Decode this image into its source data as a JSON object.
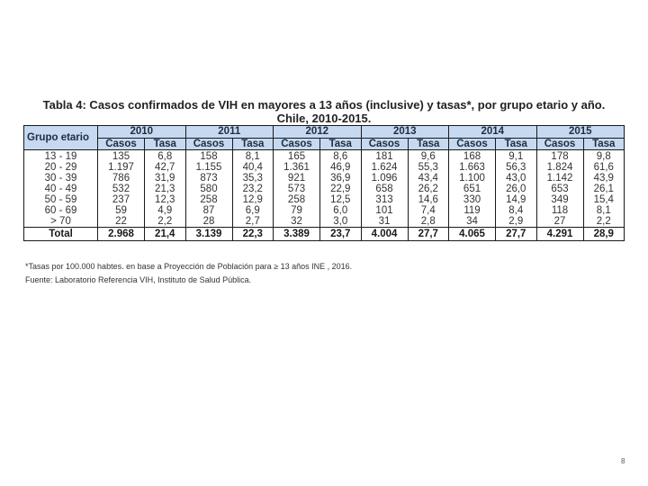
{
  "title": {
    "line1": "Tabla 4: Casos confirmados de VIH en mayores a 13 años (inclusive) y tasas*, por grupo etario y año.",
    "line2": "Chile, 2010-2015."
  },
  "table": {
    "group_header": "Grupo etario",
    "years": [
      "2010",
      "2011",
      "2012",
      "2013",
      "2014",
      "2015"
    ],
    "sub_headers": [
      "Casos",
      "Tasa"
    ],
    "rows": [
      {
        "group": "13 - 19",
        "values": [
          "135",
          "6,8",
          "158",
          "8,1",
          "165",
          "8,6",
          "181",
          "9,6",
          "168",
          "9,1",
          "178",
          "9,8"
        ]
      },
      {
        "group": "20 - 29",
        "values": [
          "1.197",
          "42,7",
          "1.155",
          "40,4",
          "1.361",
          "46,9",
          "1.624",
          "55,3",
          "1.663",
          "56,3",
          "1.824",
          "61,6"
        ]
      },
      {
        "group": "30 - 39",
        "values": [
          "786",
          "31,9",
          "873",
          "35,3",
          "921",
          "36,9",
          "1.096",
          "43,4",
          "1.100",
          "43,0",
          "1.142",
          "43,9"
        ]
      },
      {
        "group": "40 - 49",
        "values": [
          "532",
          "21,3",
          "580",
          "23,2",
          "573",
          "22,9",
          "658",
          "26,2",
          "651",
          "26,0",
          "653",
          "26,1"
        ]
      },
      {
        "group": "50 - 59",
        "values": [
          "237",
          "12,3",
          "258",
          "12,9",
          "258",
          "12,5",
          "313",
          "14,6",
          "330",
          "14,9",
          "349",
          "15,4"
        ]
      },
      {
        "group": "60 - 69",
        "values": [
          "59",
          "4,9",
          "87",
          "6,9",
          "79",
          "6,0",
          "101",
          "7,4",
          "119",
          "8,4",
          "118",
          "8,1"
        ]
      },
      {
        "group": "> 70",
        "values": [
          "22",
          "2,2",
          "28",
          "2,7",
          "32",
          "3,0",
          "31",
          "2,8",
          "34",
          "2,9",
          "27",
          "2,2"
        ]
      }
    ],
    "total": {
      "label": "Total",
      "values": [
        "2.968",
        "21,4",
        "3.139",
        "22,3",
        "3.389",
        "23,7",
        "4.004",
        "27,7",
        "4.065",
        "27,7",
        "4.291",
        "28,9"
      ]
    }
  },
  "footnote": "*Tasas por 100.000 habtes. en base a Proyección de Población para ≥ 13 años INE , 2016.",
  "source": "Fuente: Laboratorio Referencia VIH, Instituto de Salud Pública.",
  "page_number": "8",
  "colors": {
    "header_bg": "#c6d9f1",
    "border": "#1a1a1a",
    "text": "#333333"
  }
}
